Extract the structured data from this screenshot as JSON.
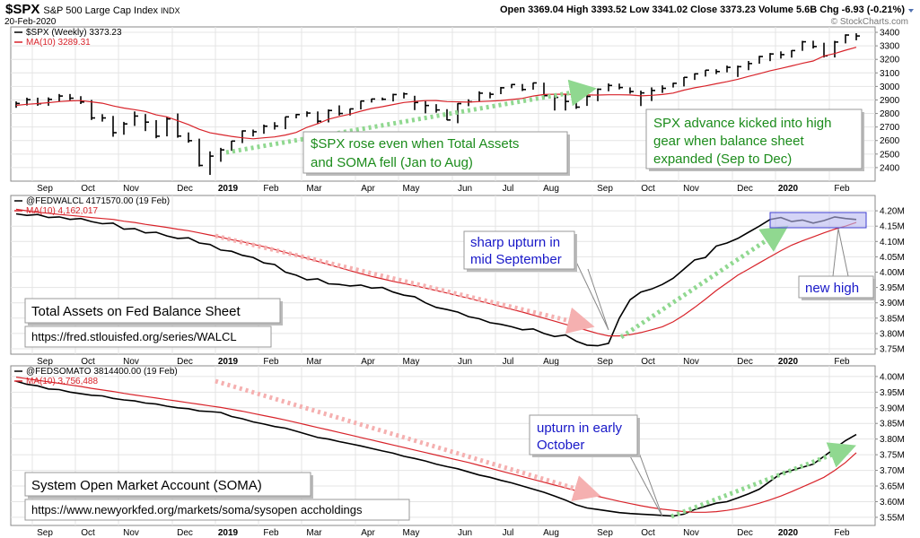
{
  "header": {
    "symbol": "$SPX",
    "name": "S&P 500 Large Cap Index",
    "exchange": "INDX",
    "date": "20-Feb-2020",
    "quote": "Open 3369.04 High 3393.52 Low 3341.02 Close 3373.23 Volume 5.6B Chg -6.93 (-0.21%)",
    "credit": "© StockCharts.com"
  },
  "chart_data": [
    {
      "type": "hlc",
      "categories": [
        null,
        null,
        "Sep",
        null,
        null,
        null,
        "Oct",
        null,
        null,
        null,
        "Nov",
        null,
        null,
        null,
        null,
        "Dec",
        null,
        null,
        null,
        "2019",
        null,
        null,
        null,
        "Feb",
        null,
        null,
        null,
        "Mar",
        null,
        null,
        null,
        null,
        "Apr",
        null,
        null,
        null,
        "May",
        null,
        null,
        null,
        null,
        "Jun",
        null,
        null,
        null,
        "Jul",
        null,
        null,
        null,
        "Aug",
        null,
        null,
        null,
        null,
        "Sep",
        null,
        null,
        null,
        "Oct",
        null,
        null,
        null,
        "Nov",
        null,
        null,
        null,
        null,
        "Dec",
        null,
        null,
        null,
        "2020",
        null,
        null,
        null,
        null,
        "Feb",
        null,
        null
      ],
      "series": [
        {
          "name": "$SPX (Weekly) 3373.23",
          "color": "#000000",
          "high": [
            2889,
            2917,
            2917,
            2919,
            2944,
            2944,
            2928,
            2900,
            2795,
            2782,
            2738,
            2815,
            2796,
            2751,
            2775,
            2800,
            2660,
            2614,
            2520,
            2546,
            2598,
            2675,
            2681,
            2718,
            2736,
            2776,
            2796,
            2816,
            2815,
            2830,
            2860,
            2836,
            2894,
            2910,
            2918,
            2946,
            2955,
            2931,
            2892,
            2869,
            2832,
            2876,
            2905,
            2964,
            2958,
            2996,
            3018,
            3018,
            3028,
            3028,
            2944,
            2940,
            2939,
            2940,
            2985,
            3022,
            3021,
            2993,
            2969,
            2993,
            3008,
            3027,
            3069,
            3097,
            3121,
            3127,
            3154,
            3154,
            3188,
            3226,
            3247,
            3259,
            3268,
            3337,
            3338,
            3323,
            3337,
            3385,
            3393
          ],
          "low": [
            2842,
            2859,
            2857,
            2857,
            2889,
            2898,
            2870,
            2752,
            2740,
            2628,
            2643,
            2708,
            2670,
            2617,
            2631,
            2621,
            2584,
            2408,
            2346,
            2443,
            2524,
            2581,
            2630,
            2650,
            2681,
            2684,
            2764,
            2775,
            2722,
            2734,
            2785,
            2785,
            2830,
            2881,
            2897,
            2889,
            2911,
            2825,
            2801,
            2806,
            2750,
            2728,
            2854,
            2887,
            2912,
            2943,
            2987,
            2966,
            2976,
            2914,
            2822,
            2822,
            2834,
            2856,
            2891,
            2964,
            2978,
            2946,
            2855,
            2892,
            2952,
            2992,
            3000,
            3048,
            3073,
            3091,
            3104,
            3070,
            3120,
            3168,
            3187,
            3206,
            3213,
            3263,
            3280,
            3214,
            3214,
            3318,
            3341
          ],
          "close": [
            2874,
            2902,
            2872,
            2904,
            2929,
            2913,
            2885,
            2767,
            2767,
            2658,
            2723,
            2781,
            2736,
            2632,
            2760,
            2633,
            2599,
            2416,
            2485,
            2531,
            2596,
            2671,
            2665,
            2706,
            2707,
            2775,
            2792,
            2803,
            2743,
            2822,
            2800,
            2834,
            2892,
            2907,
            2905,
            2940,
            2945,
            2881,
            2859,
            2826,
            2752,
            2873,
            2887,
            2950,
            2942,
            2990,
            3014,
            2977,
            3026,
            2932,
            2919,
            2889,
            2847,
            2926,
            2979,
            3007,
            2992,
            2962,
            2952,
            2970,
            2986,
            3023,
            3067,
            3093,
            3120,
            3110,
            3141,
            3146,
            3169,
            3221,
            3240,
            3235,
            3265,
            3330,
            3295,
            3226,
            3328,
            3380,
            3373
          ]
        },
        {
          "name": "MA(10) 3289.31",
          "color": "#d8232a",
          "values": [
            2860,
            2868,
            2873,
            2880,
            2888,
            2893,
            2895,
            2886,
            2876,
            2856,
            2840,
            2828,
            2815,
            2790,
            2775,
            2747,
            2718,
            2683,
            2657,
            2644,
            2631,
            2620,
            2613,
            2620,
            2627,
            2641,
            2660,
            2698,
            2724,
            2758,
            2778,
            2795,
            2817,
            2837,
            2850,
            2866,
            2881,
            2889,
            2895,
            2896,
            2888,
            2886,
            2884,
            2888,
            2891,
            2896,
            2903,
            2912,
            2929,
            2940,
            2942,
            2943,
            2939,
            2937,
            2936,
            2938,
            2938,
            2937,
            2930,
            2934,
            2940,
            2951,
            2973,
            2990,
            3004,
            3020,
            3035,
            3053,
            3074,
            3094,
            3116,
            3133,
            3152,
            3171,
            3188,
            3225,
            3243,
            3268,
            3289.31
          ]
        }
      ],
      "ylim": [
        2300,
        3440
      ],
      "yticks": [
        2400,
        2500,
        2600,
        2700,
        2800,
        2900,
        3000,
        3100,
        3200,
        3300,
        3400
      ],
      "grid": true,
      "annotations": [
        [
          "$SPX rose even when Total Assets",
          "and SOMA fell (Jan to Aug)"
        ],
        [
          "SPX advance kicked into high",
          "gear when balance sheet",
          "expanded (Sep to Dec)"
        ]
      ]
    },
    {
      "type": "line",
      "categories": [
        null,
        null,
        "Sep",
        null,
        null,
        null,
        "Oct",
        null,
        null,
        null,
        "Nov",
        null,
        null,
        null,
        null,
        "Dec",
        null,
        null,
        null,
        "2019",
        null,
        null,
        null,
        "Feb",
        null,
        null,
        null,
        "Mar",
        null,
        null,
        null,
        null,
        "Apr",
        null,
        null,
        null,
        "May",
        null,
        null,
        null,
        null,
        "Jun",
        null,
        null,
        null,
        "Jul",
        null,
        null,
        null,
        "Aug",
        null,
        null,
        null,
        null,
        "Sep",
        null,
        null,
        null,
        "Oct",
        null,
        null,
        null,
        "Nov",
        null,
        null,
        null,
        null,
        "Dec",
        null,
        null,
        null,
        "2020",
        null,
        null,
        null,
        null,
        "Feb",
        null,
        null
      ],
      "series": [
        {
          "name": "@FEDWALCL 4171570.00 (19 Feb)",
          "color": "#000000",
          "values": [
            4190000,
            4185000,
            4188000,
            4178000,
            4180000,
            4172000,
            4175000,
            4165000,
            4158000,
            4160000,
            4140000,
            4142000,
            4128000,
            4130000,
            4118000,
            4110000,
            4112000,
            4095000,
            4090000,
            4072000,
            4068000,
            4055000,
            4048000,
            4030000,
            4025000,
            4000000,
            3990000,
            3975000,
            3978000,
            3962000,
            3960000,
            3955000,
            3958000,
            3948000,
            3950000,
            3935000,
            3925000,
            3920000,
            3900000,
            3885000,
            3878000,
            3870000,
            3855000,
            3848000,
            3835000,
            3830000,
            3822000,
            3812000,
            3815000,
            3800000,
            3790000,
            3795000,
            3775000,
            3762000,
            3760000,
            3768000,
            3850000,
            3910000,
            3935000,
            3945000,
            3960000,
            3980000,
            4010000,
            4040000,
            4048000,
            4085000,
            4095000,
            4110000,
            4130000,
            4150000,
            4172000,
            4178000,
            4165000,
            4170000,
            4160000,
            4168000,
            4180000,
            4175000,
            4171570
          ]
        },
        {
          "name": "MA(10) 4,162,017",
          "color": "#d8232a",
          "values": [
            4205000,
            4200000,
            4195000,
            4192000,
            4188000,
            4185000,
            4182000,
            4178000,
            4175000,
            4172000,
            4166000,
            4162000,
            4156000,
            4151000,
            4146000,
            4140000,
            4135000,
            4128000,
            4121000,
            4114000,
            4106000,
            4099000,
            4091000,
            4083000,
            4074000,
            4064000,
            4055000,
            4045000,
            4035000,
            4025000,
            4015000,
            4005000,
            3995000,
            3986000,
            3978000,
            3970000,
            3963000,
            3956000,
            3948000,
            3940000,
            3932000,
            3923000,
            3915000,
            3906000,
            3897000,
            3888000,
            3879000,
            3870000,
            3860000,
            3850000,
            3840000,
            3830000,
            3820000,
            3810000,
            3800000,
            3792000,
            3792000,
            3796000,
            3803000,
            3812000,
            3822000,
            3838000,
            3860000,
            3885000,
            3912000,
            3940000,
            3965000,
            3990000,
            4010000,
            4030000,
            4050000,
            4070000,
            4088000,
            4102000,
            4115000,
            4128000,
            4140000,
            4150000,
            4162017
          ]
        }
      ],
      "ylim": [
        3732500,
        4250000
      ],
      "yticks": [
        {
          "value": 3750000,
          "label": "3.75M"
        },
        {
          "value": 3800000,
          "label": "3.80M"
        },
        {
          "value": 3850000,
          "label": "3.85M"
        },
        {
          "value": 3900000,
          "label": "3.90M"
        },
        {
          "value": 3950000,
          "label": "3.95M"
        },
        {
          "value": 4000000,
          "label": "4.00M"
        },
        {
          "value": 4050000,
          "label": "4.05M"
        },
        {
          "value": 4100000,
          "label": "4.10M"
        },
        {
          "value": 4150000,
          "label": "4.15M"
        },
        {
          "value": 4200000,
          "label": "4.20M"
        }
      ],
      "grid": true,
      "annotations": [
        [
          "Total Assets on Fed Balance Sheet"
        ],
        [
          "https://fred.stlouisfed.org/series/WALCL"
        ],
        [
          "sharp upturn in",
          "mid September"
        ],
        [
          "new high"
        ]
      ]
    },
    {
      "type": "line",
      "categories": [
        null,
        null,
        "Sep",
        null,
        null,
        null,
        "Oct",
        null,
        null,
        null,
        "Nov",
        null,
        null,
        null,
        null,
        "Dec",
        null,
        null,
        null,
        "2019",
        null,
        null,
        null,
        "Feb",
        null,
        null,
        null,
        "Mar",
        null,
        null,
        null,
        null,
        "Apr",
        null,
        null,
        null,
        "May",
        null,
        null,
        null,
        null,
        "Jun",
        null,
        null,
        null,
        "Jul",
        null,
        null,
        null,
        "Aug",
        null,
        null,
        null,
        null,
        "Sep",
        null,
        null,
        null,
        "Oct",
        null,
        null,
        null,
        "Nov",
        null,
        null,
        null,
        null,
        "Dec",
        null,
        null,
        null,
        "2020",
        null,
        null,
        null,
        null,
        "Feb",
        null,
        null
      ],
      "series": [
        {
          "name": "@FEDSOMATO 3814400.00 (19 Feb)",
          "color": "#000000",
          "values": [
            3985000,
            3975000,
            3970000,
            3960000,
            3958000,
            3950000,
            3945000,
            3940000,
            3938000,
            3930000,
            3925000,
            3922000,
            3915000,
            3912000,
            3905000,
            3900000,
            3897000,
            3890000,
            3888000,
            3885000,
            3872000,
            3865000,
            3855000,
            3848000,
            3840000,
            3835000,
            3825000,
            3815000,
            3805000,
            3800000,
            3792000,
            3785000,
            3778000,
            3770000,
            3762000,
            3755000,
            3745000,
            3738000,
            3730000,
            3720000,
            3712000,
            3705000,
            3695000,
            3685000,
            3678000,
            3668000,
            3660000,
            3650000,
            3640000,
            3630000,
            3618000,
            3605000,
            3590000,
            3580000,
            3575000,
            3570000,
            3565000,
            3562000,
            3560000,
            3558000,
            3556000,
            3554000,
            3560000,
            3575000,
            3585000,
            3595000,
            3600000,
            3612000,
            3625000,
            3640000,
            3665000,
            3690000,
            3700000,
            3710000,
            3720000,
            3745000,
            3770000,
            3795000,
            3814400
          ]
        },
        {
          "name": "MA(10) 3,756,488",
          "color": "#d8232a",
          "values": [
            3998000,
            3993000,
            3988000,
            3983000,
            3978000,
            3973000,
            3968000,
            3962000,
            3957000,
            3952000,
            3946000,
            3941000,
            3936000,
            3931000,
            3926000,
            3921000,
            3916000,
            3911000,
            3906000,
            3901000,
            3895000,
            3889000,
            3882000,
            3875000,
            3868000,
            3861000,
            3853000,
            3845000,
            3837000,
            3829000,
            3821000,
            3813000,
            3805000,
            3797000,
            3789000,
            3781000,
            3773000,
            3765000,
            3757000,
            3749000,
            3741000,
            3733000,
            3725000,
            3716000,
            3707000,
            3698000,
            3689000,
            3680000,
            3671000,
            3662000,
            3653000,
            3644000,
            3635000,
            3626000,
            3617000,
            3609000,
            3601000,
            3594000,
            3587000,
            3581000,
            3576000,
            3572000,
            3568000,
            3566000,
            3566000,
            3568000,
            3572000,
            3578000,
            3586000,
            3595000,
            3606000,
            3618000,
            3632000,
            3647000,
            3662000,
            3678000,
            3700000,
            3725000,
            3756488
          ]
        }
      ],
      "ylim": [
        3524000,
        4034000
      ],
      "yticks": [
        {
          "value": 3550000,
          "label": "3.55M"
        },
        {
          "value": 3600000,
          "label": "3.60M"
        },
        {
          "value": 3650000,
          "label": "3.65M"
        },
        {
          "value": 3700000,
          "label": "3.70M"
        },
        {
          "value": 3750000,
          "label": "3.75M"
        },
        {
          "value": 3800000,
          "label": "3.80M"
        },
        {
          "value": 3850000,
          "label": "3.85M"
        },
        {
          "value": 3900000,
          "label": "3.90M"
        },
        {
          "value": 3950000,
          "label": "3.95M"
        },
        {
          "value": 4000000,
          "label": "4.00M"
        }
      ],
      "grid": true,
      "annotations": [
        [
          "System Open Market Account (SOMA)"
        ],
        [
          "https://www.newyorkfed.org/markets/soma/sysopen accholdings"
        ],
        [
          "upturn in early",
          "October"
        ]
      ]
    }
  ]
}
